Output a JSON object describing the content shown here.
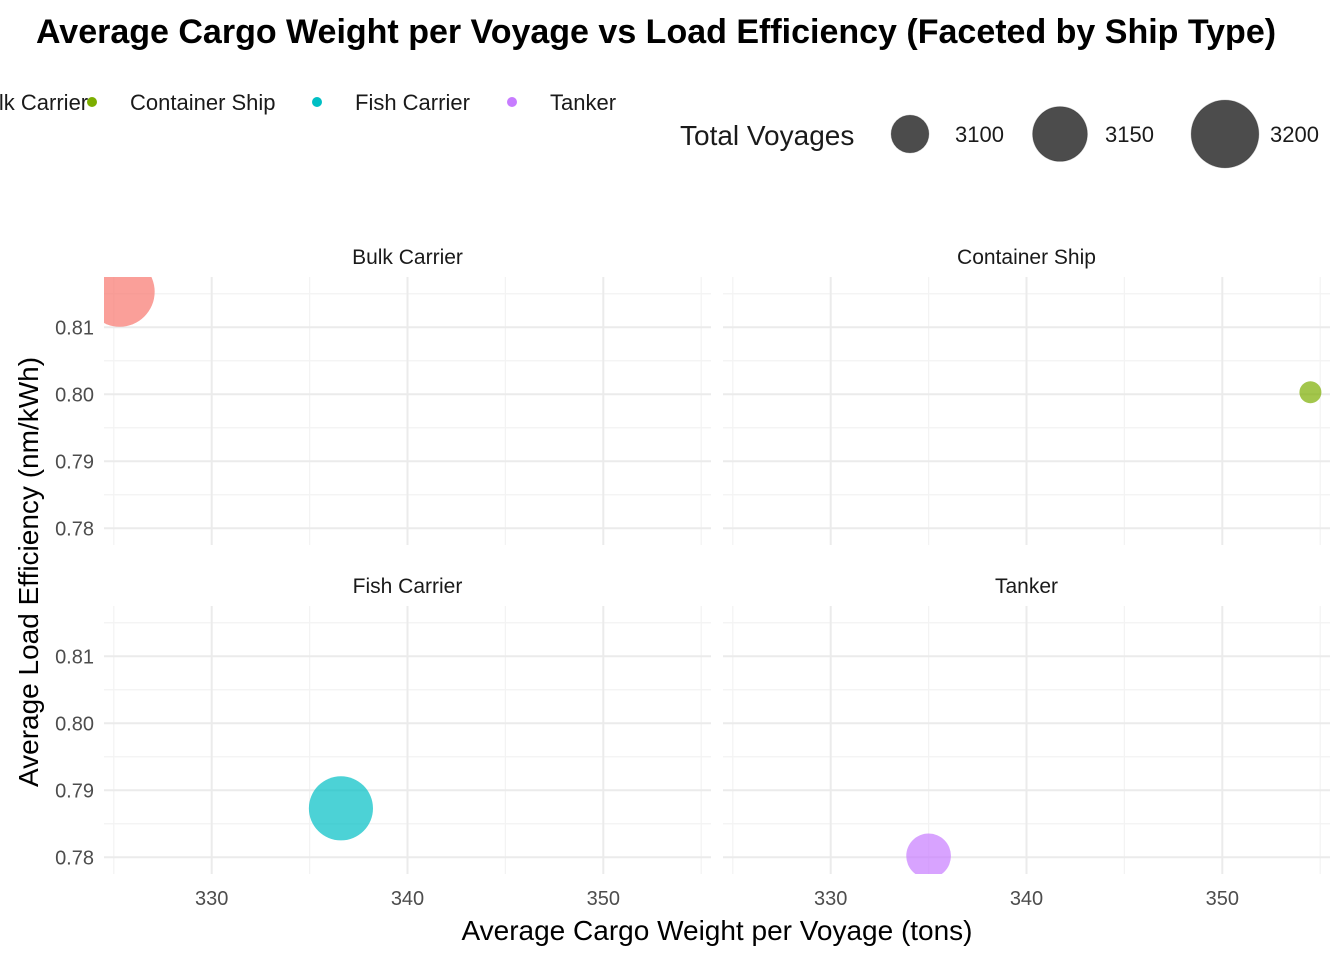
{
  "chart_data": {
    "type": "scatter",
    "title": "Average Cargo Weight per Voyage vs Load Efficiency (Faceted by Ship Type)",
    "xlabel": "Average Cargo Weight per Voyage (tons)",
    "ylabel": "Average Load Efficiency (nm/kWh)",
    "xlim": [
      324.5,
      355.5
    ],
    "ylim": [
      0.7775,
      0.8175
    ],
    "x_ticks": [
      330,
      340,
      350
    ],
    "x_tick_labels": [
      "330",
      "340",
      "350"
    ],
    "y_ticks": [
      0.78,
      0.79,
      0.8,
      0.81
    ],
    "y_tick_labels": [
      "0.78",
      "0.79",
      "0.80",
      "0.81"
    ],
    "grid": true,
    "facet_by": "Ship Type",
    "facets": [
      "Bulk Carrier",
      "Container Ship",
      "Fish Carrier",
      "Tanker"
    ],
    "color_legend": {
      "position": "top",
      "entries": [
        {
          "label": "Bulk Carrier",
          "color": "#F8766D"
        },
        {
          "label": "Container Ship",
          "color": "#7CAE00"
        },
        {
          "label": "Fish Carrier",
          "color": "#00BFC4"
        },
        {
          "label": "Tanker",
          "color": "#C77CFF"
        }
      ]
    },
    "size_legend": {
      "title": "Total Voyages",
      "position": "top",
      "entries": [
        {
          "label": "3100",
          "value": 3100
        },
        {
          "label": "3150",
          "value": 3150
        },
        {
          "label": "3200",
          "value": 3200
        }
      ]
    },
    "points": [
      {
        "facet": "Bulk Carrier",
        "x": 325.3,
        "y": 0.8153,
        "total_voyages": 3210,
        "color": "#F8766D"
      },
      {
        "facet": "Container Ship",
        "x": 354.5,
        "y": 0.8003,
        "total_voyages": 3070,
        "color": "#7CAE00"
      },
      {
        "facet": "Fish Carrier",
        "x": 336.6,
        "y": 0.7873,
        "total_voyages": 3185,
        "color": "#00BFC4"
      },
      {
        "facet": "Tanker",
        "x": 335.0,
        "y": 0.7802,
        "total_voyages": 3118,
        "color": "#C77CFF"
      }
    ]
  }
}
